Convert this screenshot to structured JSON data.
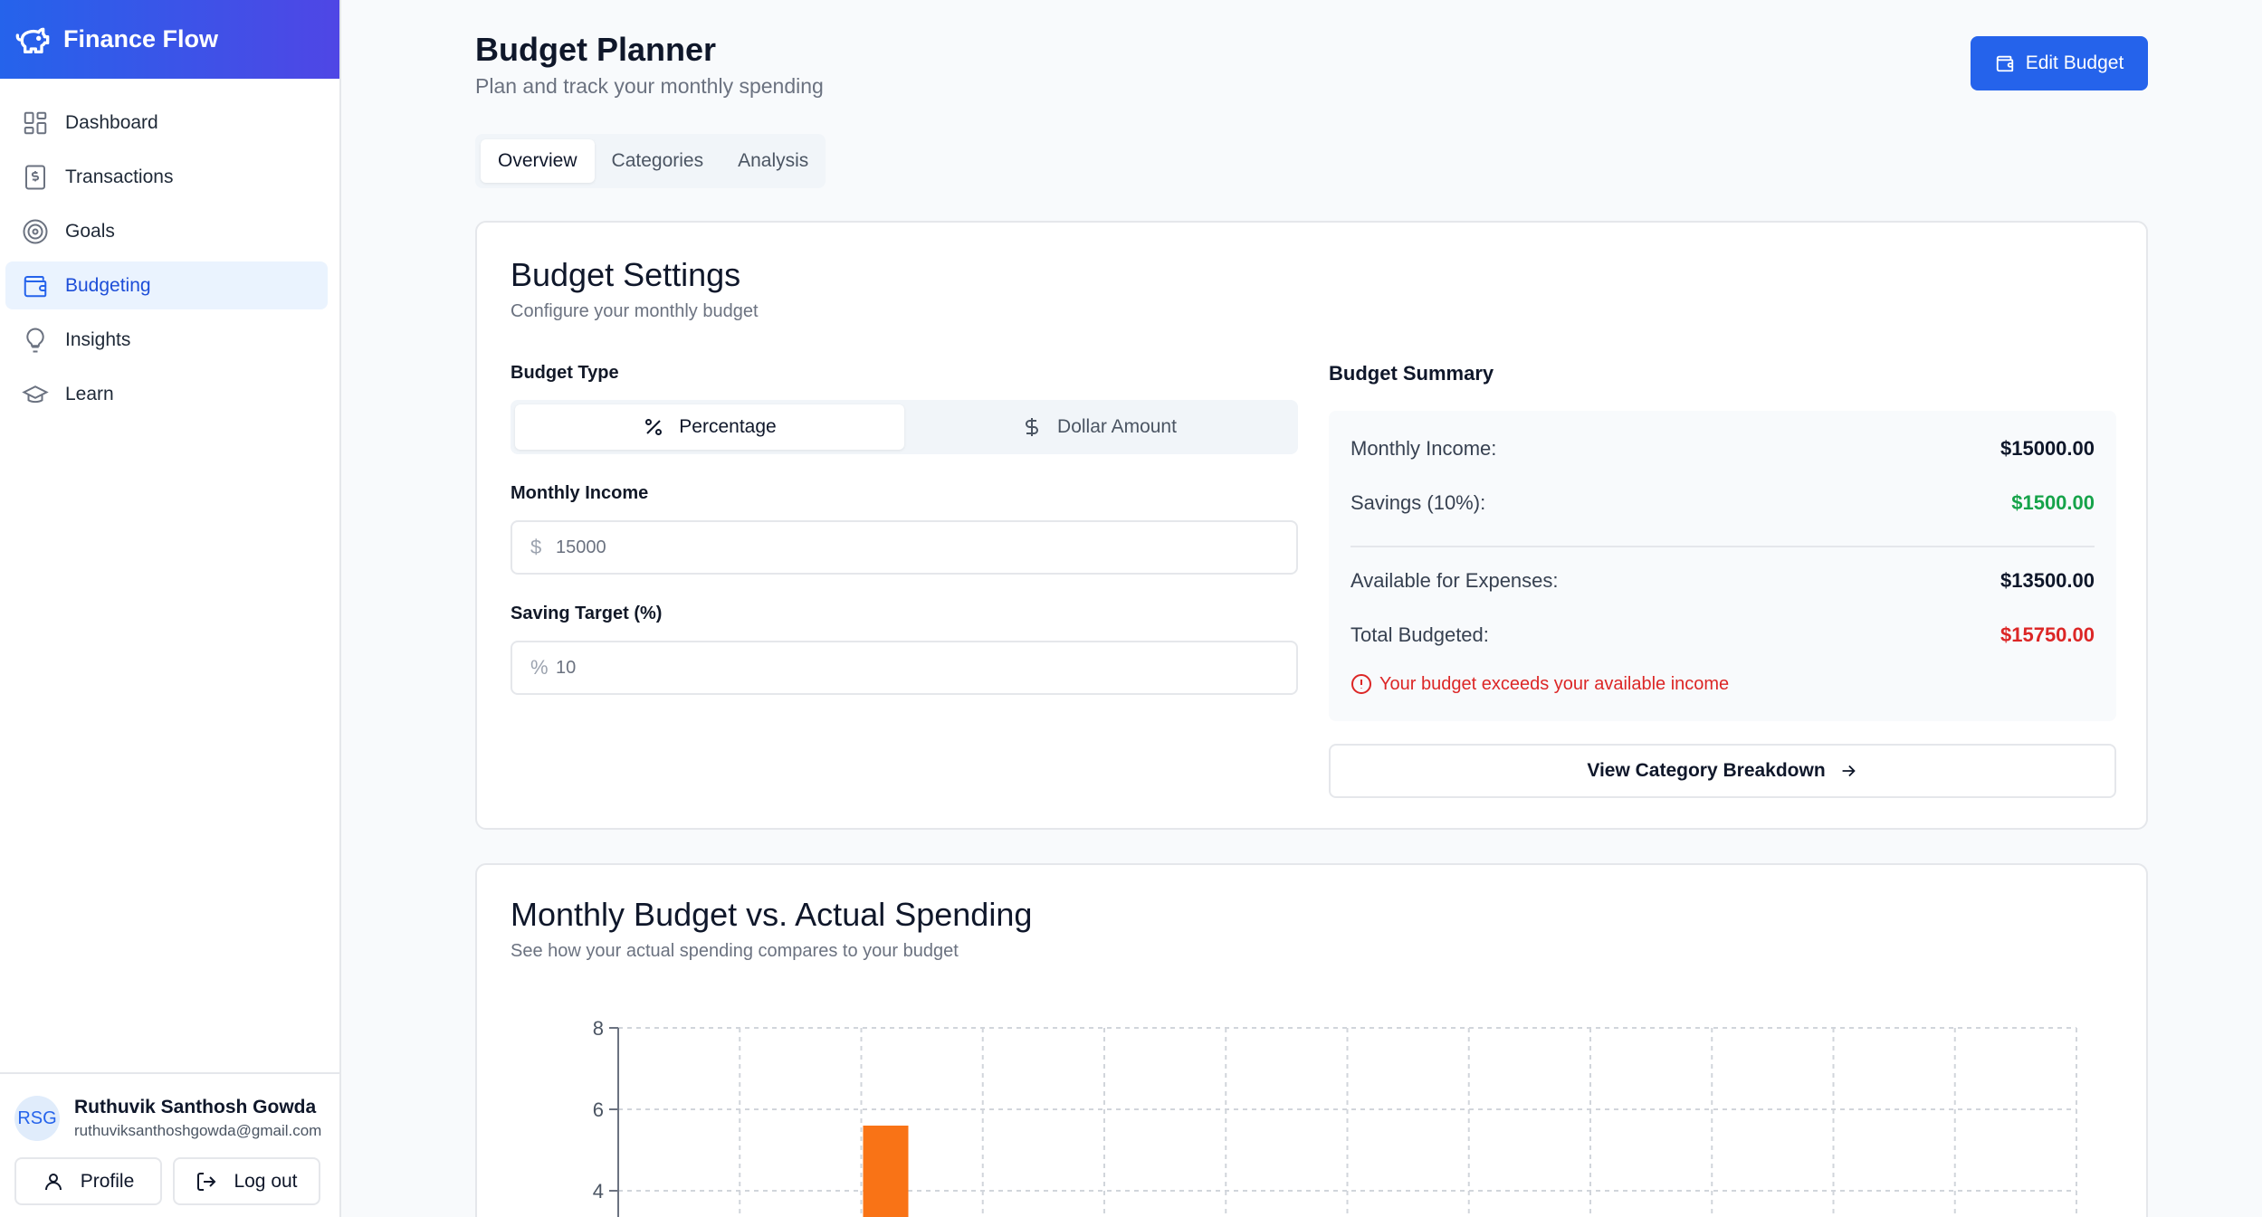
{
  "app": {
    "title": "Finance Flow"
  },
  "sidebar": {
    "items": [
      {
        "label": "Dashboard",
        "icon": "dashboard-icon"
      },
      {
        "label": "Transactions",
        "icon": "transactions-icon"
      },
      {
        "label": "Goals",
        "icon": "target-icon"
      },
      {
        "label": "Budgeting",
        "icon": "wallet-icon",
        "active": true
      },
      {
        "label": "Insights",
        "icon": "lightbulb-icon"
      },
      {
        "label": "Learn",
        "icon": "graduation-cap-icon"
      }
    ]
  },
  "user": {
    "initials": "RSG",
    "name": "Ruthuvik Santhosh Gowda",
    "email": "ruthuviksanthoshgowda@gmail.com",
    "profile_label": "Profile",
    "logout_label": "Log out"
  },
  "header": {
    "title": "Budget Planner",
    "subtitle": "Plan and track your monthly spending",
    "edit_label": "Edit Budget"
  },
  "tabs": [
    {
      "label": "Overview",
      "active": true
    },
    {
      "label": "Categories"
    },
    {
      "label": "Analysis"
    }
  ],
  "settings": {
    "title": "Budget Settings",
    "subtitle": "Configure your monthly budget",
    "budget_type_label": "Budget Type",
    "type_options": [
      "Percentage",
      "Dollar Amount"
    ],
    "selected_type": "Percentage",
    "income_label": "Monthly Income",
    "income_value": "15000",
    "income_prefix": "$",
    "saving_label": "Saving Target (%)",
    "saving_value": "10",
    "saving_prefix": "%"
  },
  "summary": {
    "title": "Budget Summary",
    "monthly_income_label": "Monthly Income:",
    "monthly_income_value": "$15000.00",
    "savings_label": "Savings (10%):",
    "savings_value": "$1500.00",
    "available_label": "Available for Expenses:",
    "available_value": "$13500.00",
    "total_label": "Total Budgeted:",
    "total_value": "$15750.00",
    "warning": "Your budget exceeds your available income",
    "breakdown_label": "View Category Breakdown"
  },
  "chart_section": {
    "title": "Monthly Budget vs. Actual Spending",
    "subtitle": "See how your actual spending compares to your budget"
  },
  "colors": {
    "primary": "#2563eb",
    "success": "#16a34a",
    "danger": "#dc2626",
    "bar": "#f97316"
  },
  "chart_data": {
    "type": "bar",
    "title": "Monthly Budget vs. Actual Spending",
    "xlabel": "",
    "ylabel": "",
    "ylim": [
      0,
      8
    ],
    "visible_yticks": [
      8,
      6,
      4
    ],
    "grid": true,
    "categories_count": 12,
    "series": [
      {
        "values": [
          null,
          null,
          5.6,
          null,
          null,
          null,
          null,
          null,
          null,
          null,
          null,
          null
        ]
      }
    ]
  }
}
